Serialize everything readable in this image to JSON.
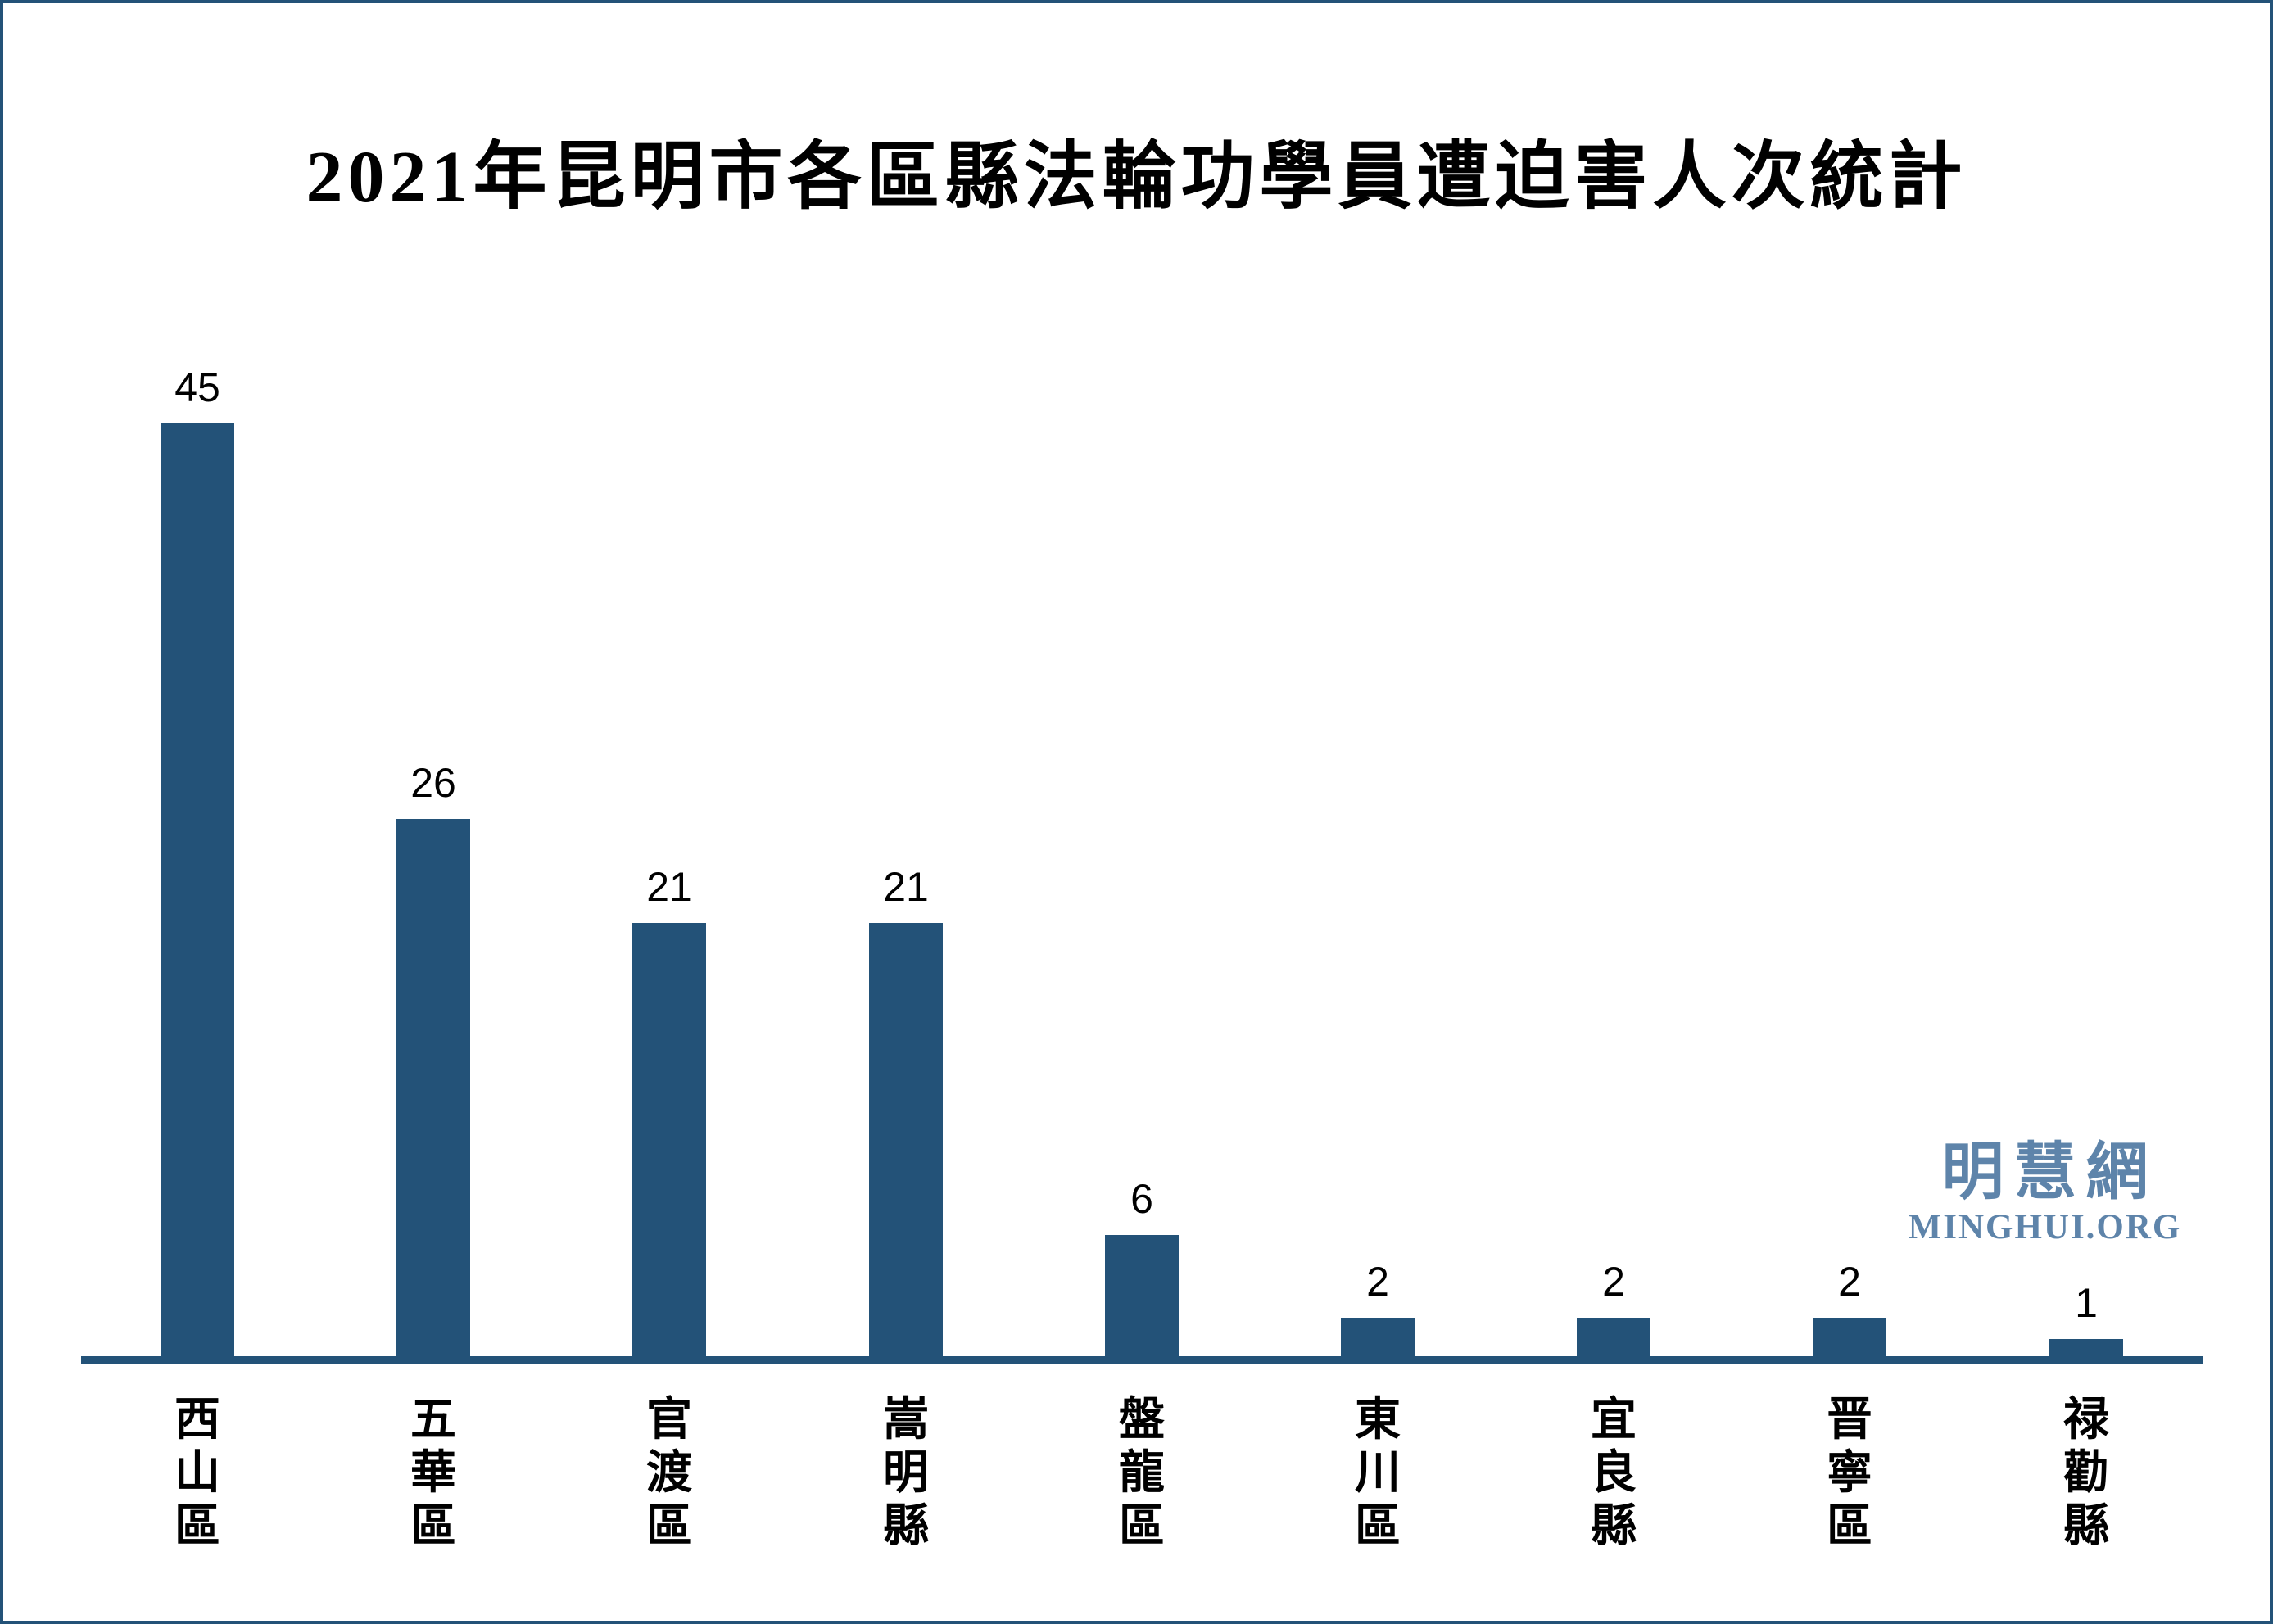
{
  "title": "2021年昆明市各區縣法輪功學員遭迫害人次統計",
  "watermark": {
    "cjk": "明慧網",
    "latin": "MINGHUI.ORG",
    "color": "#5E84AA"
  },
  "colors": {
    "bar": "#235278",
    "axis_line": "#235278",
    "frame_border": "#235278",
    "title_text": "#000000",
    "value_label_text": "#000000"
  },
  "chart_data": {
    "type": "bar",
    "title": "2021年昆明市各區縣法輪功學員遭迫害人次統計",
    "categories": [
      "西山區",
      "五華區",
      "官渡區",
      "嵩明縣",
      "盤龍區",
      "東川區",
      "宜良縣",
      "晋寧區",
      "禄勸縣"
    ],
    "values": [
      45,
      26,
      21,
      21,
      6,
      2,
      2,
      2,
      1
    ],
    "value_labels": [
      "45",
      "26",
      "21",
      "21",
      "6",
      "2",
      "2",
      "2",
      "1"
    ],
    "xlabel": "",
    "ylabel": "",
    "ylim": [
      0,
      45
    ],
    "grid": false,
    "legend": false,
    "y_axis_visible": false,
    "x_baseline_visible": true,
    "bar_color": "#235278",
    "category_label_orientation": "vertical"
  }
}
